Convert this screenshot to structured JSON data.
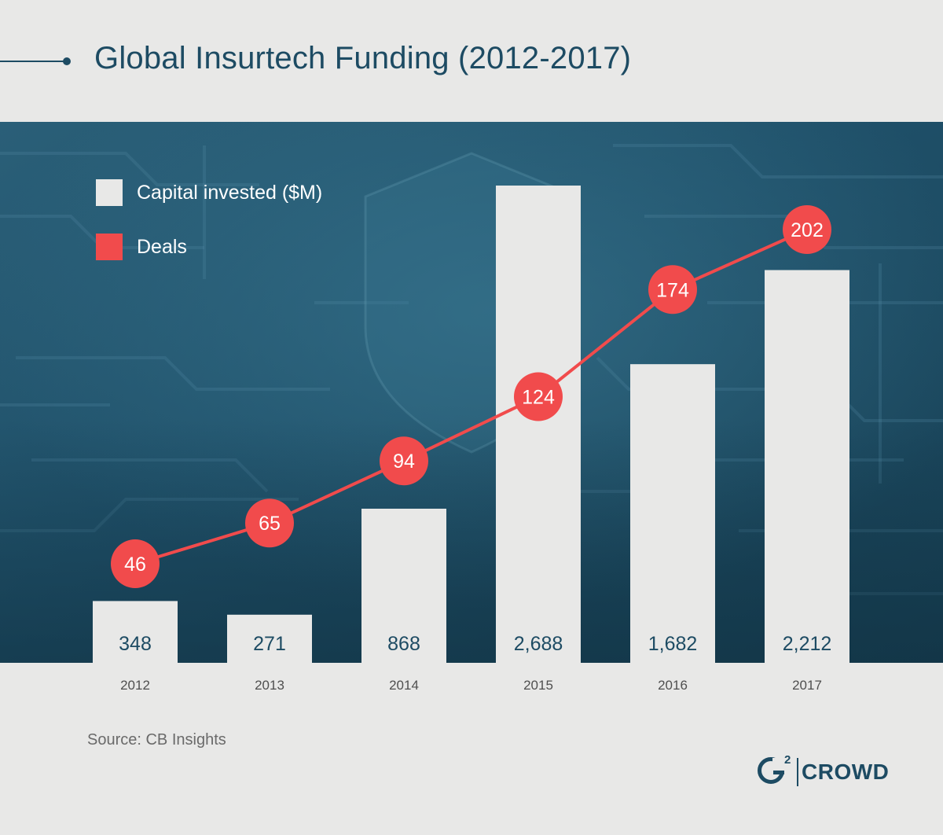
{
  "header": {
    "title": "Global Insurtech Funding (2012-2017)"
  },
  "chart_data": {
    "type": "bar",
    "title": "Global Insurtech Funding (2012-2017)",
    "categories": [
      "2012",
      "2013",
      "2014",
      "2015",
      "2016",
      "2017"
    ],
    "series": [
      {
        "name": "Capital invested ($M)",
        "type": "bar",
        "color": "#e8e8e7",
        "values": [
          348,
          271,
          868,
          2688,
          1682,
          2212
        ],
        "labels": [
          "348",
          "271",
          "868",
          "2,688",
          "1,682",
          "2,212"
        ]
      },
      {
        "name": "Deals",
        "type": "line",
        "color": "#f14b4c",
        "values": [
          46,
          65,
          94,
          124,
          174,
          202
        ],
        "labels": [
          "46",
          "65",
          "94",
          "124",
          "174",
          "202"
        ]
      }
    ],
    "xlabel": "",
    "ylabel": "",
    "ylim_bars": [
      0,
      2688
    ],
    "ylim_line": [
      46,
      202
    ],
    "legend_position": "top-left",
    "grid": false
  },
  "footer": {
    "source": "Source: CB Insights"
  },
  "logo": {
    "superscript": "2",
    "word": "CROWD",
    "text": "G2 CROWD"
  },
  "colors": {
    "background": "#e8e8e7",
    "panel": "#1f4f66",
    "accent": "#f14b4c",
    "text_dark": "#1d4b63",
    "bar": "#e8e8e7"
  }
}
